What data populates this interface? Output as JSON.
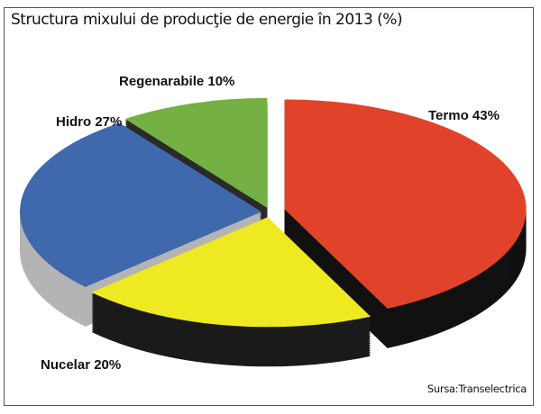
{
  "chart_data": {
    "type": "pie",
    "style": "3d-exploded",
    "title": "Structura mixului de producţie de energie în 2013 (%)",
    "source": "Sursa:Transelectrica",
    "slices": [
      {
        "label": "Termo 43%",
        "name": "Termo",
        "value": 43,
        "color": "#e0432a",
        "side": "#111111"
      },
      {
        "label": "Nucelar 20%",
        "name": "Nucelar",
        "value": 20,
        "color": "#efe921",
        "side": "#1a1a1a"
      },
      {
        "label": "Hidro 27%",
        "name": "Hidro",
        "value": 27,
        "color": "#4068ac",
        "side": "#b4b4b4"
      },
      {
        "label": "Regenarabile 10%",
        "name": "Regenarabile",
        "value": 10,
        "color": "#74b043",
        "side": "#2a2a2a"
      }
    ]
  }
}
